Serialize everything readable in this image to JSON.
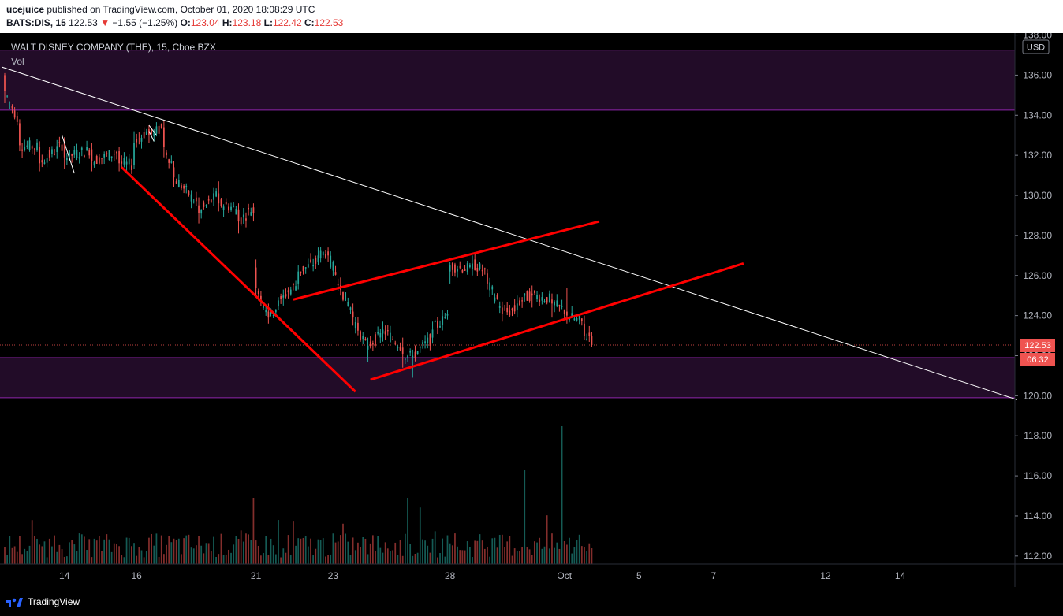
{
  "header": {
    "author": "ucejuice",
    "published_text": "published on TradingView.com, October 01, 2020 18:08:29 UTC",
    "symbol": "BATS:DIS, 15",
    "last": "122.53",
    "change_arrow": "▼",
    "change": "−1.55 (−1.25%)",
    "o_label": "O:",
    "o_value": "123.04",
    "h_label": "H:",
    "h_value": "123.18",
    "l_label": "L:",
    "l_value": "122.42",
    "c_label": "C:",
    "c_value": "122.53"
  },
  "legend": {
    "title": "WALT DISNEY COMPANY (THE), 15, Cboe BZX",
    "vol": "Vol"
  },
  "currency": "USD",
  "price_label": "122.53",
  "countdown": "06:32",
  "footer": {
    "brand": "TradingView"
  },
  "colors": {
    "background": "#000000",
    "up": "#26a69a",
    "down": "#ef5350",
    "zone_fill": "#220c28",
    "zone_border": "#8e24aa",
    "trend_white": "#ffffff",
    "trend_red": "#ff0000",
    "price_tag": "#ef5350"
  },
  "chart_data": {
    "type": "candlestick",
    "y_ticks": [
      "112.00",
      "114.00",
      "116.00",
      "118.00",
      "120.00",
      "122.00",
      "124.00",
      "126.00",
      "128.00",
      "130.00",
      "132.00",
      "134.00",
      "136.00",
      "138.00"
    ],
    "x_ticks": [
      "14",
      "16",
      "21",
      "23",
      "28",
      "Oct",
      "5",
      "7",
      "12",
      "14"
    ],
    "ylim": [
      111.6,
      138.1
    ],
    "last_price": 122.53,
    "zones": [
      [
        134.25,
        137.25
      ],
      [
        119.9,
        121.9
      ]
    ],
    "dotted_price_line": 122.53,
    "anchor_points": [
      {
        "bar": 0,
        "open": 136.0,
        "close": 135.2,
        "high": 136.1,
        "low": 134.6
      },
      {
        "bar": 6,
        "open": 133.6,
        "close": 132.5,
        "high": 133.8,
        "low": 132.2
      },
      {
        "bar": 14,
        "open": 132.4,
        "close": 131.6,
        "high": 132.7,
        "low": 131.2
      },
      {
        "bar": 24,
        "open": 132.6,
        "close": 131.9,
        "high": 132.9,
        "low": 131.3
      },
      {
        "bar": 35,
        "open": 132.3,
        "close": 131.7,
        "high": 132.6,
        "low": 131.2
      },
      {
        "bar": 46,
        "open": 132.2,
        "close": 131.6,
        "high": 132.4,
        "low": 131.2
      },
      {
        "bar": 52,
        "open": 131.5,
        "close": 132.6,
        "high": 133.2,
        "low": 131.3
      },
      {
        "bar": 58,
        "open": 133.3,
        "close": 133.0,
        "high": 133.5,
        "low": 132.6
      },
      {
        "bar": 64,
        "open": 133.4,
        "close": 132.4,
        "high": 133.7,
        "low": 131.9
      },
      {
        "bar": 68,
        "open": 131.4,
        "close": 130.9,
        "high": 131.7,
        "low": 130.4
      },
      {
        "bar": 78,
        "open": 129.5,
        "close": 129.1,
        "high": 129.9,
        "low": 128.6
      },
      {
        "bar": 86,
        "open": 130.1,
        "close": 129.6,
        "high": 130.7,
        "low": 129.2
      },
      {
        "bar": 94,
        "open": 129.3,
        "close": 128.7,
        "high": 129.6,
        "low": 128.1
      },
      {
        "bar": 100,
        "open": 129.4,
        "close": 129.1,
        "high": 129.6,
        "low": 128.7
      },
      {
        "bar": 101,
        "open": 126.4,
        "close": 125.4,
        "high": 126.8,
        "low": 124.9
      },
      {
        "bar": 106,
        "open": 124.2,
        "close": 123.9,
        "high": 124.6,
        "low": 123.6
      },
      {
        "bar": 112,
        "open": 124.9,
        "close": 125.0,
        "high": 125.3,
        "low": 124.5
      },
      {
        "bar": 118,
        "open": 125.6,
        "close": 126.2,
        "high": 126.5,
        "low": 125.3
      },
      {
        "bar": 126,
        "open": 126.7,
        "close": 127.0,
        "high": 127.4,
        "low": 126.5
      },
      {
        "bar": 130,
        "open": 127.2,
        "close": 127.0,
        "high": 127.4,
        "low": 126.7
      },
      {
        "bar": 135,
        "open": 125.5,
        "close": 125.3,
        "high": 125.9,
        "low": 125.0
      },
      {
        "bar": 140,
        "open": 124.2,
        "close": 123.9,
        "high": 124.6,
        "low": 123.5
      },
      {
        "bar": 146,
        "open": 122.3,
        "close": 122.5,
        "high": 122.9,
        "low": 121.7
      },
      {
        "bar": 152,
        "open": 123.1,
        "close": 123.3,
        "high": 123.7,
        "low": 122.7
      },
      {
        "bar": 160,
        "open": 122.4,
        "close": 122.1,
        "high": 122.9,
        "low": 121.4
      },
      {
        "bar": 164,
        "open": 121.9,
        "close": 122.0,
        "high": 122.3,
        "low": 120.9
      },
      {
        "bar": 172,
        "open": 122.9,
        "close": 123.3,
        "high": 123.7,
        "low": 122.6
      },
      {
        "bar": 178,
        "open": 124.0,
        "close": 124.1,
        "high": 124.3,
        "low": 123.8
      },
      {
        "bar": 179,
        "open": 126.2,
        "close": 126.5,
        "high": 126.7,
        "low": 125.6
      },
      {
        "bar": 188,
        "open": 126.3,
        "close": 126.6,
        "high": 127.0,
        "low": 126.0
      },
      {
        "bar": 194,
        "open": 126.1,
        "close": 125.6,
        "high": 126.3,
        "low": 125.3
      },
      {
        "bar": 200,
        "open": 124.4,
        "close": 124.1,
        "high": 124.7,
        "low": 123.7
      },
      {
        "bar": 206,
        "open": 124.3,
        "close": 124.6,
        "high": 125.0,
        "low": 123.9
      },
      {
        "bar": 212,
        "open": 125.1,
        "close": 125.0,
        "high": 125.5,
        "low": 124.4
      },
      {
        "bar": 220,
        "open": 124.8,
        "close": 124.6,
        "high": 125.1,
        "low": 123.9
      },
      {
        "bar": 226,
        "open": 124.2,
        "close": 124.0,
        "high": 125.4,
        "low": 123.6
      },
      {
        "bar": 233,
        "open": 123.6,
        "close": 123.0,
        "high": 124.0,
        "low": 122.8
      },
      {
        "bar": 236,
        "open": 123.0,
        "close": 122.53,
        "high": 123.18,
        "low": 122.42
      }
    ],
    "x_tick_bars": [
      24,
      53,
      101,
      132,
      179,
      225,
      255,
      285,
      330,
      360
    ],
    "total_slots": 408,
    "trendlines": [
      {
        "color": "white",
        "from": {
          "bar": -1,
          "price": 136.4
        },
        "to": {
          "bar": 407,
          "price": 119.8
        }
      },
      {
        "color": "red",
        "from": {
          "bar": 47,
          "price": 131.4
        },
        "to": {
          "bar": 141,
          "price": 120.2
        }
      },
      {
        "color": "red",
        "from": {
          "bar": 116,
          "price": 124.8
        },
        "to": {
          "bar": 239,
          "price": 128.7
        }
      },
      {
        "color": "red",
        "from": {
          "bar": 147,
          "price": 120.8
        },
        "to": {
          "bar": 297,
          "price": 126.6
        }
      }
    ],
    "small_marks": [
      {
        "color": "white",
        "from": {
          "bar": 23,
          "price": 133.0
        },
        "to": {
          "bar": 28,
          "price": 131.1
        }
      },
      {
        "color": "white",
        "from": {
          "bar": 58,
          "price": 133.5
        },
        "to": {
          "bar": 61,
          "price": 133.0
        }
      },
      {
        "color": "white",
        "from": {
          "bar": 58,
          "price": 133.2
        },
        "to": {
          "bar": 60,
          "price": 132.7
        }
      }
    ],
    "volume_spikes": [
      {
        "bar": 209,
        "value": 8.5
      },
      {
        "bar": 224,
        "value": 12.5
      },
      {
        "bar": 162,
        "value": 6.0
      },
      {
        "bar": 100,
        "value": 6.0
      }
    ]
  }
}
